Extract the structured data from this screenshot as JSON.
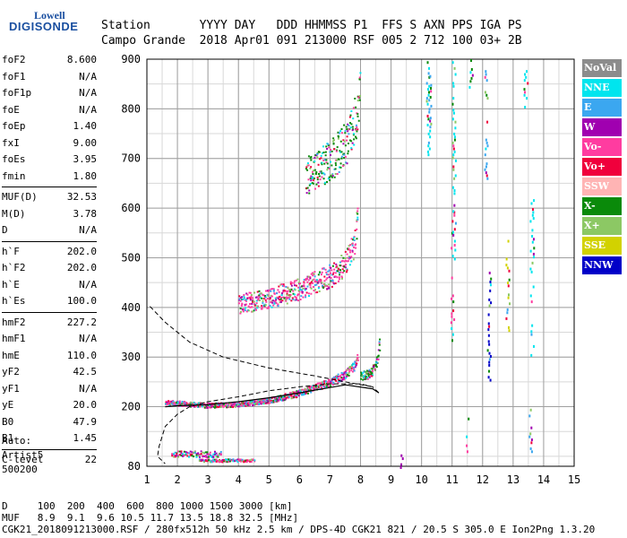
{
  "logo": {
    "line1": "Lowell",
    "line2": "DIGISONDE"
  },
  "header": {
    "line1": "Station       YYYY DAY   DDD HHMMSS P1  FFS S AXN PPS IGA PS",
    "line2": "Campo Grande  2018 Apr01 091 213000 RSF 005 2 712 100 03+ 2B"
  },
  "params": [
    [
      [
        "foF2",
        "8.600"
      ],
      [
        "foF1",
        "N/A"
      ],
      [
        "foF1p",
        "N/A"
      ],
      [
        "foE",
        "N/A"
      ],
      [
        "foEp",
        "1.40"
      ],
      [
        "fxI",
        "9.00"
      ],
      [
        "foEs",
        "3.95"
      ],
      [
        "fmin",
        "1.80"
      ]
    ],
    [
      [
        "MUF(D)",
        "32.53"
      ],
      [
        "M(D)",
        "3.78"
      ],
      [
        "D",
        "N/A"
      ]
    ],
    [
      [
        "h`F",
        "202.0"
      ],
      [
        "h`F2",
        "202.0"
      ],
      [
        "h`E",
        "N/A"
      ],
      [
        "h`Es",
        "100.0"
      ]
    ],
    [
      [
        "hmF2",
        "227.2"
      ],
      [
        "hmF1",
        "N/A"
      ],
      [
        "hmE",
        "110.0"
      ],
      [
        "yF2",
        "42.5"
      ],
      [
        "yF1",
        "N/A"
      ],
      [
        "yE",
        "20.0"
      ],
      [
        "B0",
        "47.9"
      ],
      [
        "B1",
        "1.45"
      ]
    ],
    [
      [
        "C-level",
        "22"
      ]
    ]
  ],
  "auto": [
    "Auto:",
    "Artist5",
    "500200"
  ],
  "footer": {
    "line1": "D     100  200  400  600  800 1000 1500 3000 [km]",
    "line2": "MUF   8.9  9.1  9.6 10.5 11.7 13.5 18.8 32.5 [MHz]",
    "line3": "CGK21_2018091213000.RSF / 280fx512h 50 kHz 2.5 km / DPS-4D CGK21 821 / 20.5 S 305.0 E Ion2Png 1.3.20"
  },
  "legend": [
    {
      "label": "NoVal",
      "color": "#8c8c8c"
    },
    {
      "label": "NNE",
      "color": "#00e5ee"
    },
    {
      "label": "E",
      "color": "#3ba7f0"
    },
    {
      "label": "W",
      "color": "#a000b0"
    },
    {
      "label": "Vo-",
      "color": "#ff3ca0"
    },
    {
      "label": "Vo+",
      "color": "#f0003c"
    },
    {
      "label": "SSW",
      "color": "#ffb4b4"
    },
    {
      "label": "X-",
      "color": "#0a8a0a"
    },
    {
      "label": "X+",
      "color": "#8cc864"
    },
    {
      "label": "SSE",
      "color": "#d2d200"
    },
    {
      "label": "NNW",
      "color": "#0000c8"
    }
  ],
  "chart_data": {
    "type": "scatter",
    "xlabel": "",
    "ylabel": "",
    "xlim": [
      1,
      15
    ],
    "ylim": [
      80,
      900
    ],
    "x_ticks": [
      1,
      2,
      3,
      4,
      5,
      6,
      7,
      8,
      9,
      10,
      11,
      12,
      13,
      14,
      15
    ],
    "y_ticks": [
      80,
      200,
      300,
      400,
      500,
      600,
      700,
      800,
      900
    ],
    "x_minor_step": 0.5,
    "y_minor_step": 50,
    "traces": [
      {
        "name": "Es echo",
        "color": "#a000b0",
        "x0": 1.8,
        "x1": 3.4,
        "y": [
          100,
          112
        ]
      },
      {
        "name": "Es echo low",
        "color": "#ff3ca0",
        "x0": 2.7,
        "x1": 4.5,
        "y": [
          90,
          96
        ]
      },
      {
        "name": "F trace O",
        "color": "#ff3ca0",
        "points": [
          [
            1.6,
            208
          ],
          [
            2,
            206
          ],
          [
            3,
            202
          ],
          [
            4,
            204
          ],
          [
            5,
            212
          ],
          [
            6,
            226
          ],
          [
            7,
            248
          ],
          [
            7.5,
            262
          ],
          [
            7.8,
            282
          ],
          [
            7.9,
            300
          ]
        ]
      },
      {
        "name": "F trace X",
        "color": "#0a8a0a",
        "points": [
          [
            8,
            260
          ],
          [
            8.3,
            264
          ],
          [
            8.5,
            280
          ],
          [
            8.6,
            320
          ]
        ]
      },
      {
        "name": "2F trace",
        "color": "#ff3ca0",
        "points": [
          [
            4,
            400
          ],
          [
            5,
            412
          ],
          [
            6,
            430
          ],
          [
            7,
            455
          ],
          [
            7.5,
            480
          ],
          [
            7.8,
            520
          ],
          [
            7.9,
            600
          ]
        ]
      },
      {
        "name": "3F trace",
        "color": "#0a8a0a",
        "points": [
          [
            6.2,
            650
          ],
          [
            7,
            680
          ],
          [
            7.6,
            720
          ],
          [
            7.9,
            780
          ],
          [
            8,
            880
          ]
        ]
      }
    ],
    "profile_curve": [
      [
        8.6,
        228
      ],
      [
        8.4,
        240
      ],
      [
        8,
        246
      ],
      [
        7,
        246
      ],
      [
        6,
        240
      ],
      [
        5,
        232
      ],
      [
        4,
        220
      ],
      [
        3,
        210
      ],
      [
        2.4,
        200
      ],
      [
        2,
        185
      ],
      [
        1.6,
        160
      ],
      [
        1.4,
        120
      ],
      [
        1.35,
        100
      ],
      [
        1.6,
        85
      ]
    ],
    "scaled_curve": [
      [
        8.6,
        228
      ],
      [
        8.4,
        236
      ],
      [
        7.5,
        244
      ],
      [
        6,
        228
      ],
      [
        5,
        218
      ],
      [
        4,
        210
      ],
      [
        3,
        204
      ],
      [
        2,
        202
      ],
      [
        1.6,
        200
      ]
    ],
    "profile_dashed": [
      [
        1.1,
        402
      ],
      [
        1.6,
        370
      ],
      [
        2.4,
        330
      ],
      [
        3.5,
        300
      ],
      [
        5,
        278
      ],
      [
        6.5,
        262
      ],
      [
        7.5,
        250
      ],
      [
        8.4,
        240
      ]
    ],
    "vertical_streaks": [
      {
        "x": 10.2,
        "y": [
          710,
          900
        ],
        "color": "#00e5ee"
      },
      {
        "x": 10.25,
        "y": [
          760,
          880
        ],
        "color": "#3ba7f0"
      },
      {
        "x": 11,
        "y": [
          330,
          600
        ],
        "color": "#ff3ca0"
      },
      {
        "x": 11.05,
        "y": [
          500,
          900
        ],
        "color": "#00e5ee"
      },
      {
        "x": 11.6,
        "y": [
          840,
          900
        ],
        "color": "#0a8a0a"
      },
      {
        "x": 12.1,
        "y": [
          650,
          880
        ],
        "color": "#3ba7f0"
      },
      {
        "x": 12.2,
        "y": [
          250,
          480
        ],
        "color": "#0000c8"
      },
      {
        "x": 12.8,
        "y": [
          350,
          540
        ],
        "color": "#d2d200"
      },
      {
        "x": 13.4,
        "y": [
          800,
          880
        ],
        "color": "#00e5ee"
      },
      {
        "x": 13.6,
        "y": [
          300,
          620
        ],
        "color": "#00e5ee"
      },
      {
        "x": 13.55,
        "y": [
          100,
          200
        ],
        "color": "#3ba7f0"
      },
      {
        "x": 9.3,
        "y": [
          80,
          110
        ],
        "color": "#a000b0"
      },
      {
        "x": 11.5,
        "y": [
          100,
          180
        ],
        "color": "#ff3ca0"
      }
    ]
  }
}
